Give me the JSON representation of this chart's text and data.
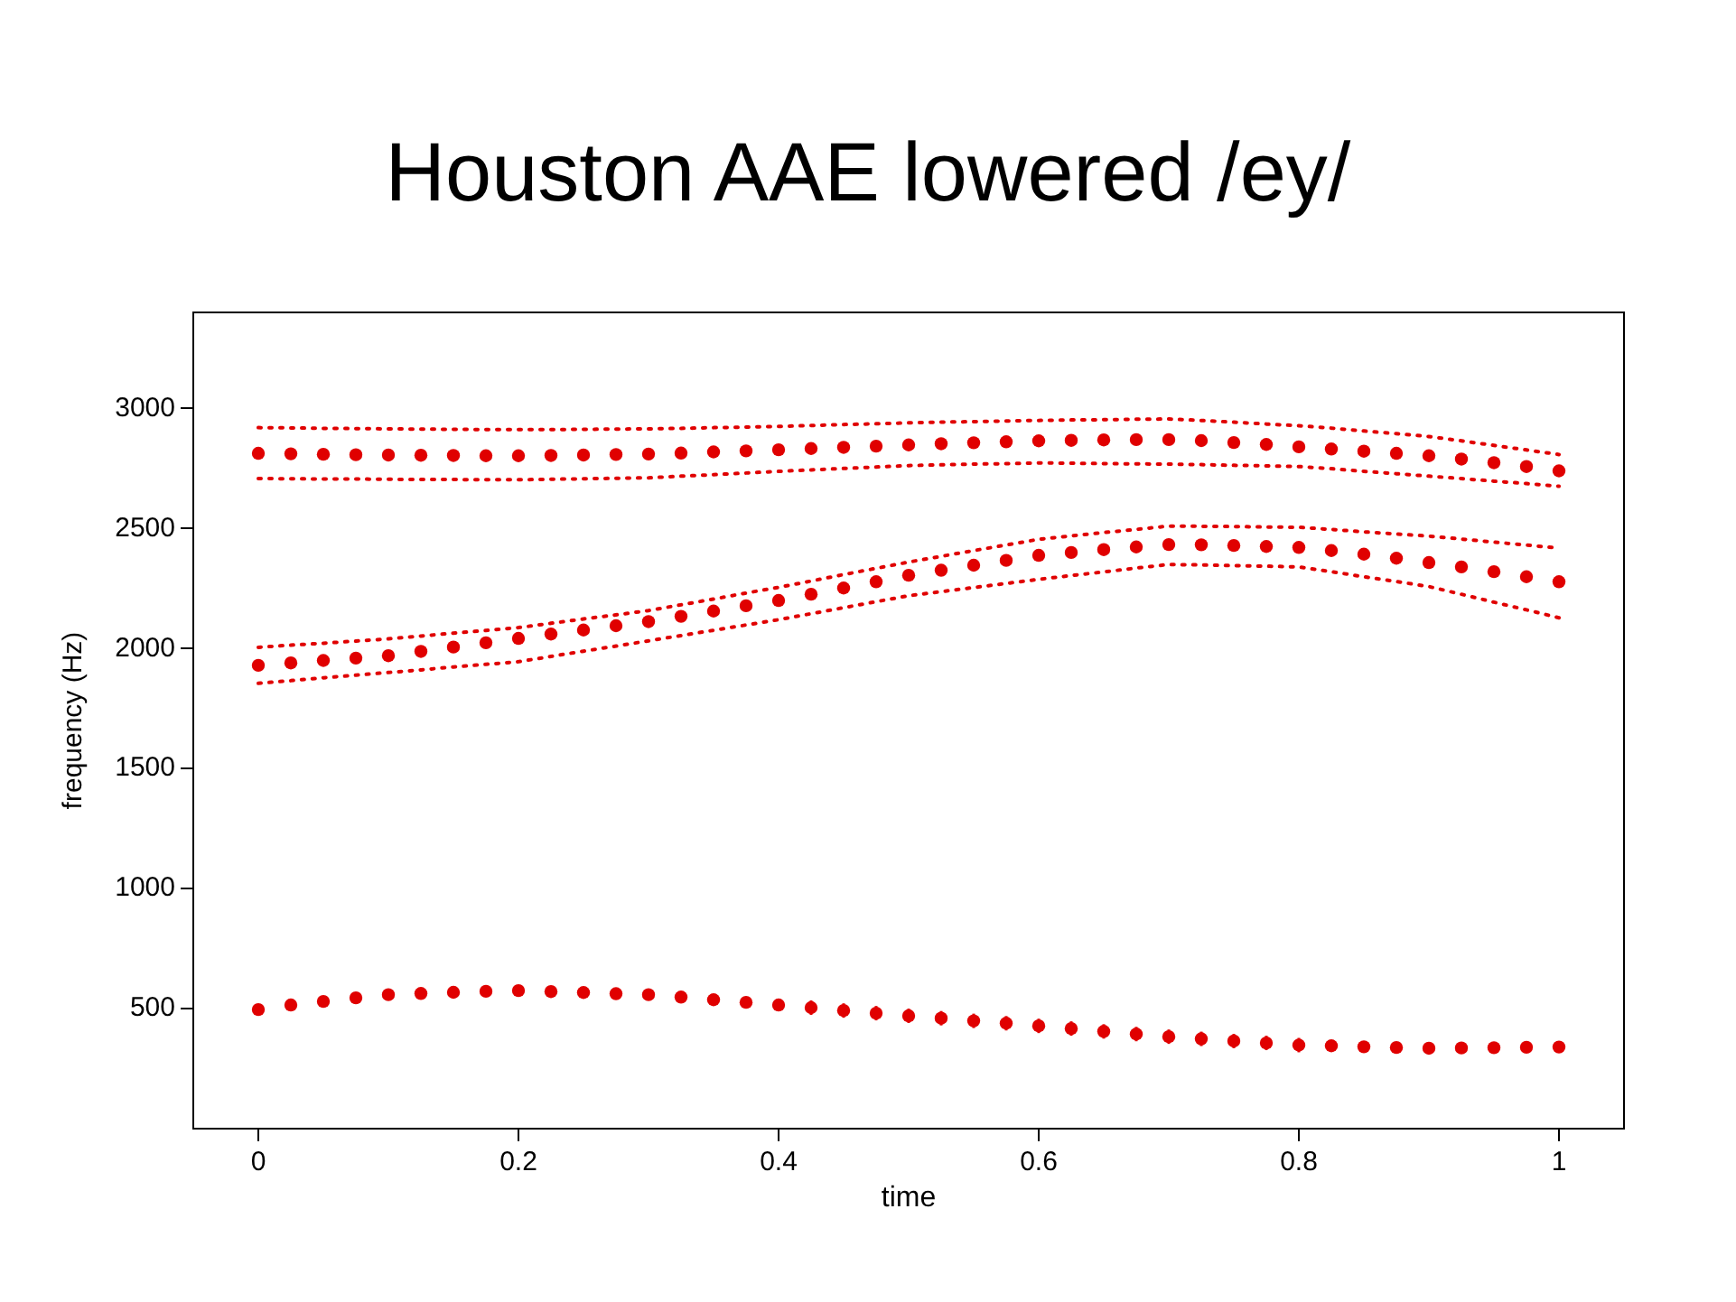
{
  "chart_data": {
    "type": "scatter",
    "title": "Houston AAE lowered /ey/",
    "xlabel": "time",
    "ylabel": "frequency (Hz)",
    "x": [
      0,
      0.025,
      0.05,
      0.075,
      0.1,
      0.125,
      0.15,
      0.175,
      0.2,
      0.225,
      0.25,
      0.275,
      0.3,
      0.325,
      0.35,
      0.375,
      0.4,
      0.425,
      0.45,
      0.475,
      0.5,
      0.525,
      0.55,
      0.575,
      0.6,
      0.625,
      0.65,
      0.675,
      0.7,
      0.725,
      0.75,
      0.775,
      0.8,
      0.825,
      0.85,
      0.875,
      0.9,
      0.925,
      0.95,
      0.975,
      1
    ],
    "xlim": [
      -0.05,
      1.05
    ],
    "xticks": [
      0,
      0.2,
      0.4,
      0.6,
      0.8,
      1
    ],
    "ylim": [
      0,
      3400
    ],
    "yticks": [
      500,
      1000,
      1500,
      2000,
      2500,
      3000
    ],
    "marker": "circle",
    "series": [
      {
        "type": "line",
        "marker": "none",
        "line_style": "dotted",
        "color": "#e00000",
        "values": [
          2920,
          2919,
          2917,
          2916,
          2915,
          2914,
          2913,
          2912,
          2912,
          2912,
          2913,
          2914,
          2915,
          2917,
          2920,
          2922,
          2925,
          2929,
          2933,
          2936,
          2940,
          2943,
          2945,
          2948,
          2950,
          2952,
          2953,
          2955,
          2956,
          2950,
          2943,
          2935,
          2928,
          2918,
          2906,
          2895,
          2883,
          2865,
          2846,
          2827,
          2808
        ]
      },
      {
        "type": "scatter",
        "color": "#e00000",
        "values": [
          2813,
          2811,
          2809,
          2807,
          2806,
          2805,
          2804,
          2803,
          2803,
          2804,
          2806,
          2808,
          2810,
          2814,
          2819,
          2823,
          2828,
          2833,
          2838,
          2843,
          2848,
          2853,
          2857,
          2861,
          2865,
          2867,
          2869,
          2870,
          2870,
          2866,
          2858,
          2850,
          2840,
          2831,
          2822,
          2813,
          2803,
          2789,
          2774,
          2758,
          2740
        ]
      },
      {
        "type": "line",
        "marker": "none",
        "line_style": "dotted",
        "color": "#e00000",
        "values": [
          2708,
          2707,
          2706,
          2706,
          2705,
          2704,
          2704,
          2703,
          2703,
          2705,
          2707,
          2709,
          2711,
          2718,
          2724,
          2731,
          2738,
          2744,
          2750,
          2756,
          2762,
          2765,
          2768,
          2770,
          2773,
          2772,
          2770,
          2769,
          2768,
          2766,
          2763,
          2761,
          2758,
          2749,
          2738,
          2728,
          2718,
          2708,
          2697,
          2687,
          2676
        ]
      },
      {
        "type": "line",
        "marker": "none",
        "line_style": "dotted",
        "color": "#e00000",
        "values": [
          2005,
          2014,
          2022,
          2031,
          2040,
          2052,
          2064,
          2075,
          2087,
          2105,
          2123,
          2140,
          2158,
          2182,
          2206,
          2231,
          2255,
          2281,
          2308,
          2334,
          2360,
          2384,
          2408,
          2431,
          2455,
          2469,
          2483,
          2496,
          2510,
          2509,
          2508,
          2506,
          2505,
          2496,
          2486,
          2477,
          2468,
          2456,
          2443,
          2431,
          2418
        ]
      },
      {
        "type": "scatter",
        "color": "#e00000",
        "values": [
          1930,
          1940,
          1950,
          1960,
          1970,
          1988,
          2006,
          2024,
          2042,
          2060,
          2077,
          2095,
          2112,
          2134,
          2156,
          2178,
          2200,
          2226,
          2252,
          2278,
          2305,
          2326,
          2347,
          2367,
          2388,
          2400,
          2412,
          2423,
          2433,
          2432,
          2429,
          2425,
          2421,
          2408,
          2393,
          2376,
          2358,
          2340,
          2320,
          2299,
          2278
        ]
      },
      {
        "type": "line",
        "marker": "none",
        "line_style": "dotted",
        "color": "#e00000",
        "values": [
          1855,
          1866,
          1878,
          1889,
          1900,
          1911,
          1923,
          1934,
          1945,
          1967,
          1989,
          2010,
          2032,
          2054,
          2076,
          2098,
          2120,
          2145,
          2170,
          2195,
          2220,
          2237,
          2254,
          2271,
          2288,
          2304,
          2319,
          2335,
          2350,
          2348,
          2345,
          2343,
          2340,
          2320,
          2299,
          2279,
          2258,
          2226,
          2193,
          2161,
          2128
        ]
      },
      {
        "type": "scatter",
        "color": "#e00000",
        "values": [
          496,
          515,
          530,
          545,
          558,
          563,
          568,
          572,
          575,
          571,
          567,
          562,
          558,
          548,
          537,
          526,
          515,
          504,
          492,
          481,
          470,
          460,
          449,
          439,
          428,
          417,
          405,
          394,
          383,
          374,
          365,
          357,
          348,
          345,
          341,
          338,
          335,
          336,
          337,
          339,
          340
        ],
        "errors": [
          20,
          20,
          20,
          20,
          20,
          20,
          20,
          20,
          20,
          20,
          20,
          20,
          20,
          20,
          20,
          20,
          20,
          30,
          30,
          30,
          30,
          30,
          30,
          30,
          30,
          30,
          30,
          30,
          30,
          30,
          30,
          30,
          30,
          20,
          20,
          20,
          20,
          20,
          20,
          20,
          20
        ]
      }
    ]
  }
}
